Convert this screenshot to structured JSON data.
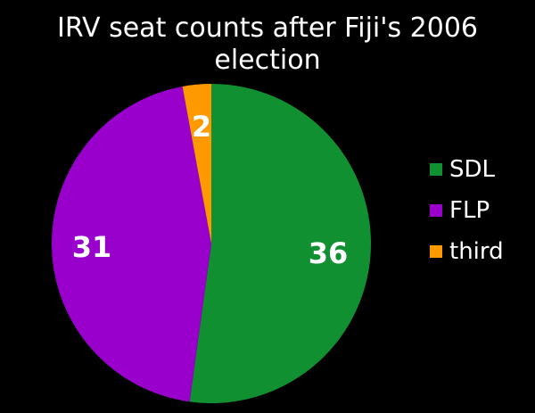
{
  "chart_data": {
    "type": "pie",
    "title": "IRV seat counts after Fiji's 2006 election",
    "categories": [
      "SDL",
      "FLP",
      "third"
    ],
    "values": [
      36,
      31,
      2
    ],
    "colors": [
      "#109030",
      "#9900CC",
      "#FF9900"
    ],
    "data_labels": [
      "36",
      "31",
      "2"
    ],
    "legend_position": "right",
    "start_angle_deg": 0,
    "direction": "clockwise"
  }
}
